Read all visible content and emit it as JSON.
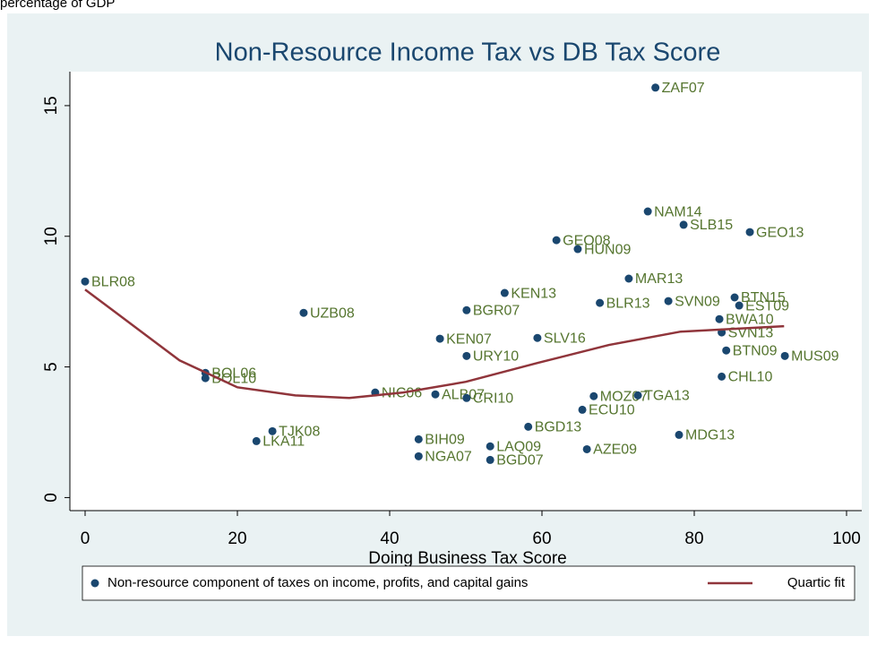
{
  "chart_data": {
    "type": "scatter",
    "caption": "percentage of GDP",
    "title": "Non-Resource Income Tax vs DB Tax Score",
    "x_label": "Doing Business Tax Score",
    "xlim": [
      -2,
      102
    ],
    "ylim": [
      -0.5,
      16.3
    ],
    "xticks": [
      0,
      20,
      40,
      60,
      80,
      100
    ],
    "yticks": [
      0,
      5,
      10,
      15
    ],
    "series": [
      {
        "name": "Non-resource component of taxes on income, profits, and capital gains",
        "type": "scatter",
        "color": "#1a476f",
        "label_color": "#55752f",
        "labels": [
          "BLR08",
          "ZAF07",
          "NAM14",
          "SLB15",
          "GEO13",
          "GEO08",
          "HUN09",
          "MAR13",
          "KEN13",
          "UZB08",
          "BGR07",
          "BLR13",
          "SVN09",
          "BTN15",
          "EST09",
          "BWA10",
          "KEN07",
          "SLV16",
          "SVN13",
          "BTN09",
          "MUS09",
          "CHL10",
          "URY10",
          "BOL06",
          "BOL10",
          "NIC06",
          "ALB07",
          "CRI10",
          "TJK08",
          "LKA11",
          "BIH09",
          "NGA07",
          "LAQ09",
          "BGD07",
          "AZE09",
          "MDG13",
          "BGD13",
          "MOZ07",
          "TGA13",
          "ECU10"
        ],
        "x": [
          0,
          74.9,
          73.9,
          78.6,
          87.3,
          61.9,
          64.7,
          71.4,
          55.1,
          28.7,
          50.1,
          67.6,
          76.6,
          85.3,
          85.9,
          83.3,
          46.6,
          59.4,
          83.6,
          84.2,
          91.9,
          83.6,
          50.1,
          15.8,
          15.8,
          38.1,
          46.0,
          50.1,
          24.6,
          22.5,
          43.8,
          43.8,
          53.2,
          53.2,
          65.9,
          78.0,
          58.2,
          66.8,
          72.6,
          65.3
        ],
        "values": [
          8.27,
          15.69,
          10.95,
          10.44,
          10.16,
          9.85,
          9.51,
          8.38,
          7.83,
          7.07,
          7.17,
          7.45,
          7.52,
          7.66,
          7.35,
          6.83,
          6.08,
          6.11,
          6.32,
          5.63,
          5.42,
          4.63,
          5.42,
          4.77,
          4.57,
          4.02,
          3.95,
          3.81,
          2.54,
          2.16,
          2.23,
          1.58,
          1.96,
          1.44,
          1.85,
          2.4,
          2.71,
          3.88,
          3.91,
          3.36
        ]
      },
      {
        "name": "Quartic fit",
        "type": "line",
        "color": "#90353b",
        "x": [
          0,
          12.4,
          20,
          27.6,
          34.7,
          41.8,
          50,
          59.4,
          68.8,
          78.2,
          91.8
        ],
        "values": [
          7.96,
          5.25,
          4.22,
          3.91,
          3.81,
          4.02,
          4.43,
          5.15,
          5.84,
          6.35,
          6.56
        ]
      }
    ]
  }
}
